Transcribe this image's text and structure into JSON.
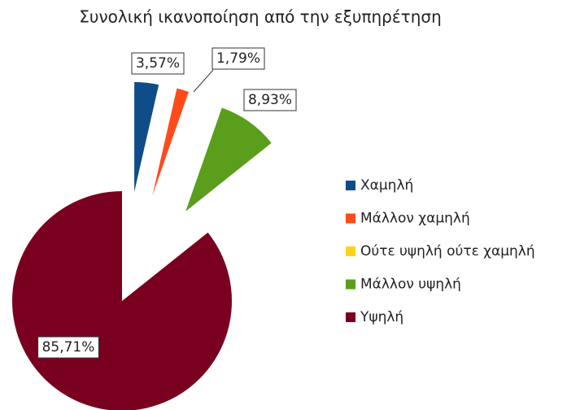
{
  "chart_data": {
    "type": "pie",
    "title": "Συνολική ικανοποίηση από την εξυπηρέτηση",
    "categories": [
      "Χαμηλή",
      "Μάλλον χαμηλή",
      "Ούτε υψηλή ούτε χαμηλή",
      "Μάλλον υψηλή",
      "Υψηλή"
    ],
    "values": [
      3.57,
      1.79,
      0,
      8.93,
      85.71
    ],
    "value_labels": [
      "3,57%",
      "1,79%",
      null,
      "8,93%",
      "85,71%"
    ],
    "colors": [
      "#0f4c8a",
      "#ff4a1a",
      "#ffd21a",
      "#5a9e1c",
      "#7a0020"
    ],
    "legend": "right"
  }
}
